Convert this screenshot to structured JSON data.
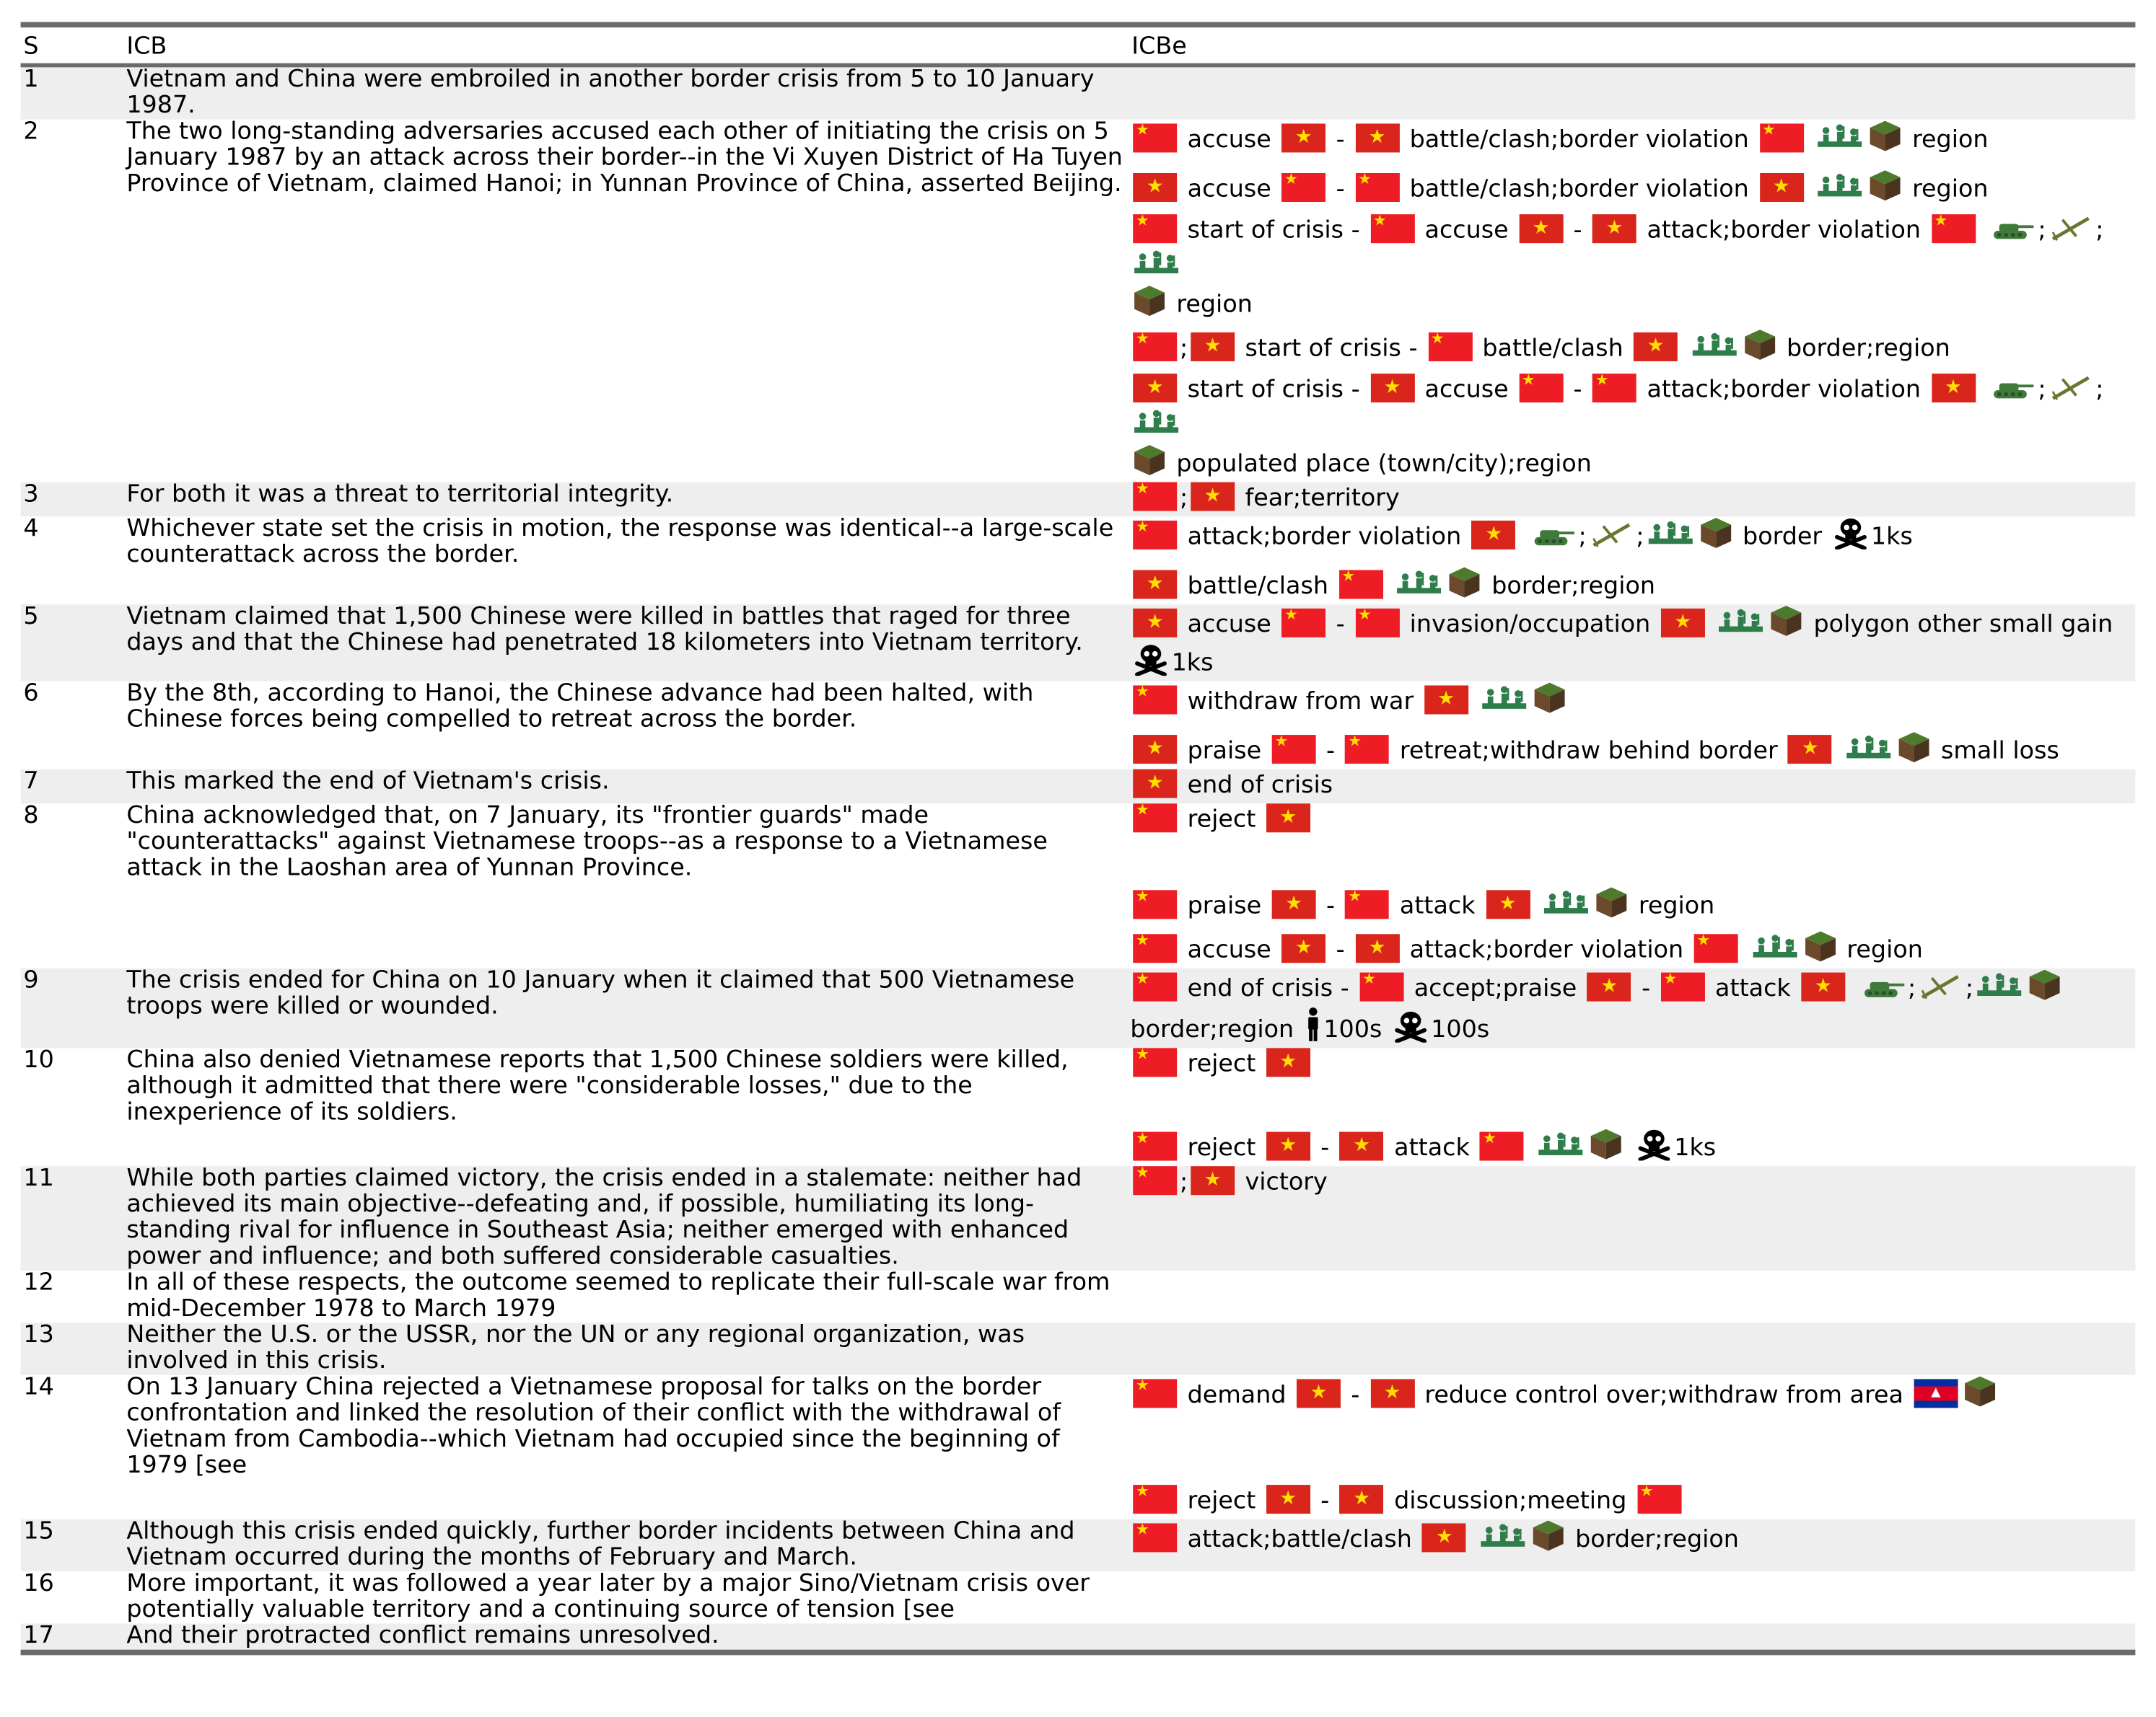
{
  "header": {
    "s": "S",
    "icb": "ICB",
    "icbe": "ICBe"
  },
  "rows": [
    {
      "s": "1",
      "text": "Vietnam and China were embroiled in another border crisis from 5 to 10 January 1987."
    },
    {
      "s": "2",
      "text": "The two long-standing adversaries accused each other of initiating the crisis on 5 January 1987 by an attack across their border--in the Vi Xuyen District of Ha Tuyen Province of Vietnam, claimed Hanoi; in Yunnan Province of China, asserted Beijing."
    },
    {
      "s": "3",
      "text": "For both it was a threat to territorial integrity."
    },
    {
      "s": "4",
      "text": "Whichever state set the crisis in motion, the response was identical--a large-scale counterattack across the border."
    },
    {
      "s": "5",
      "text": "Vietnam claimed that 1,500 Chinese were killed in battles that raged for three days and that the Chinese had penetrated 18 kilometers into Vietnam territory."
    },
    {
      "s": "6",
      "text": "By the 8th, according to Hanoi, the Chinese advance had been halted, with Chinese forces being compelled to retreat across the border."
    },
    {
      "s": "7",
      "text": "This marked the end of Vietnam's crisis."
    },
    {
      "s": "8",
      "text": "China acknowledged that, on 7 January, its \"frontier guards\" made \"counterattacks\" against Vietnamese troops--as a response to a Vietnamese attack in the Laoshan area of Yunnan Province."
    },
    {
      "s": "9",
      "text": "The crisis ended for China on 10 January when it claimed that 500 Vietnamese troops were killed or wounded."
    },
    {
      "s": "10",
      "text": "China also denied Vietnamese reports that 1,500 Chinese soldiers were killed, although it admitted that there were \"considerable losses,\" due to the inexperience of its soldiers."
    },
    {
      "s": "11",
      "text": "While both parties claimed victory, the crisis ended in a stalemate: neither had achieved its main objective--defeating and, if possible, humiliating its long-standing rival for influence in Southeast Asia; neither emerged with enhanced power and influence; and both suffered considerable casualties."
    },
    {
      "s": "12",
      "text": "In all of these respects, the outcome seemed to replicate their full-scale war from mid-December 1978 to March 1979"
    },
    {
      "s": "13",
      "text": "Neither the U.S. or the USSR, nor the UN or any regional organization, was involved in this crisis."
    },
    {
      "s": "14",
      "text": "On 13 January China rejected a Vietnamese proposal for talks on the border confrontation and linked the resolution of their conflict with the withdrawal of Vietnam from Cambodia--which Vietnam had occupied since the beginning of 1979 [see"
    },
    {
      "s": "15",
      "text": "Although this crisis ended quickly, further border incidents between China and Vietnam occurred during the months of February and March."
    },
    {
      "s": "16",
      "text": "More important, it was followed a year later by a major Sino/Vietnam crisis over potentially valuable territory and a continuing source of tension [see"
    },
    {
      "s": "17",
      "text": "And their protracted conflict remains unresolved."
    }
  ],
  "events": {
    "r2": [
      {
        "p1": "accuse",
        "p2": "battle/clash;border violation",
        "p3": "region"
      },
      {
        "p1": "accuse",
        "p2": "battle/clash;border violation",
        "p3": "region"
      },
      {
        "p1": "start of crisis",
        "p2": "accuse",
        "p3": "attack;border violation",
        "p4": "region"
      },
      {
        "p1": "start of crisis",
        "p2": "battle/clash",
        "p3": "border;region"
      },
      {
        "p1": "start of crisis",
        "p2": "accuse",
        "p3": "attack;border violation",
        "p4": "populated place (town/city);region"
      }
    ],
    "r3": [
      {
        "p1": "fear;territory"
      }
    ],
    "r4": [
      {
        "p1": "attack;border violation",
        "p2": "border",
        "p3": "1ks"
      },
      {
        "p1": "battle/clash",
        "p2": "border;region"
      }
    ],
    "r5": [
      {
        "p1": "accuse",
        "p2": "invasion/occupation",
        "p3": "polygon other small gain",
        "p4": "1ks"
      }
    ],
    "r6": [
      {
        "p1": "withdraw from war"
      },
      {
        "p1": "praise",
        "p2": "retreat;withdraw behind border",
        "p3": "small loss"
      }
    ],
    "r7": [
      {
        "p1": "end of crisis"
      }
    ],
    "r8": [
      {
        "p1": "reject"
      },
      {
        "p1": "praise",
        "p2": "attack",
        "p3": "region"
      },
      {
        "p1": "accuse",
        "p2": "attack;border violation",
        "p3": "region"
      }
    ],
    "r9": [
      {
        "p1": "end of crisis",
        "p2": "accept;praise",
        "p3": "attack",
        "p4": "border;region",
        "p5": "100s",
        "p6": "100s"
      }
    ],
    "r10": [
      {
        "p1": "reject"
      },
      {
        "p1": "reject",
        "p2": "attack",
        "p3": "1ks"
      }
    ],
    "r11": [
      {
        "p1": "victory"
      }
    ],
    "r14": [
      {
        "p1": "demand",
        "p2": "reduce control over;withdraw from area"
      },
      {
        "p1": "reject",
        "p2": "discussion;meeting"
      }
    ],
    "r15": [
      {
        "p1": "attack;battle/clash",
        "p2": "border;region"
      }
    ]
  },
  "symbols": {
    "dash": "-",
    "semicolon": ";"
  },
  "icons": {
    "china": "china-flag-icon",
    "vietnam": "vietnam-flag-icon",
    "cambodia": "cambodia-flag-icon",
    "soldiers": "soldiers-icon",
    "terrain": "terrain-block-icon",
    "tank": "tank-icon",
    "aircraft": "aircraft-icon",
    "skull": "skull-crossbones-icon",
    "person": "person-icon"
  },
  "colors": {
    "rule": "#6b6b6b",
    "shade": "#eeeeee",
    "china_red": "#ee1c25",
    "vietnam_red": "#da251d",
    "star_yellow": "#ffde00"
  }
}
